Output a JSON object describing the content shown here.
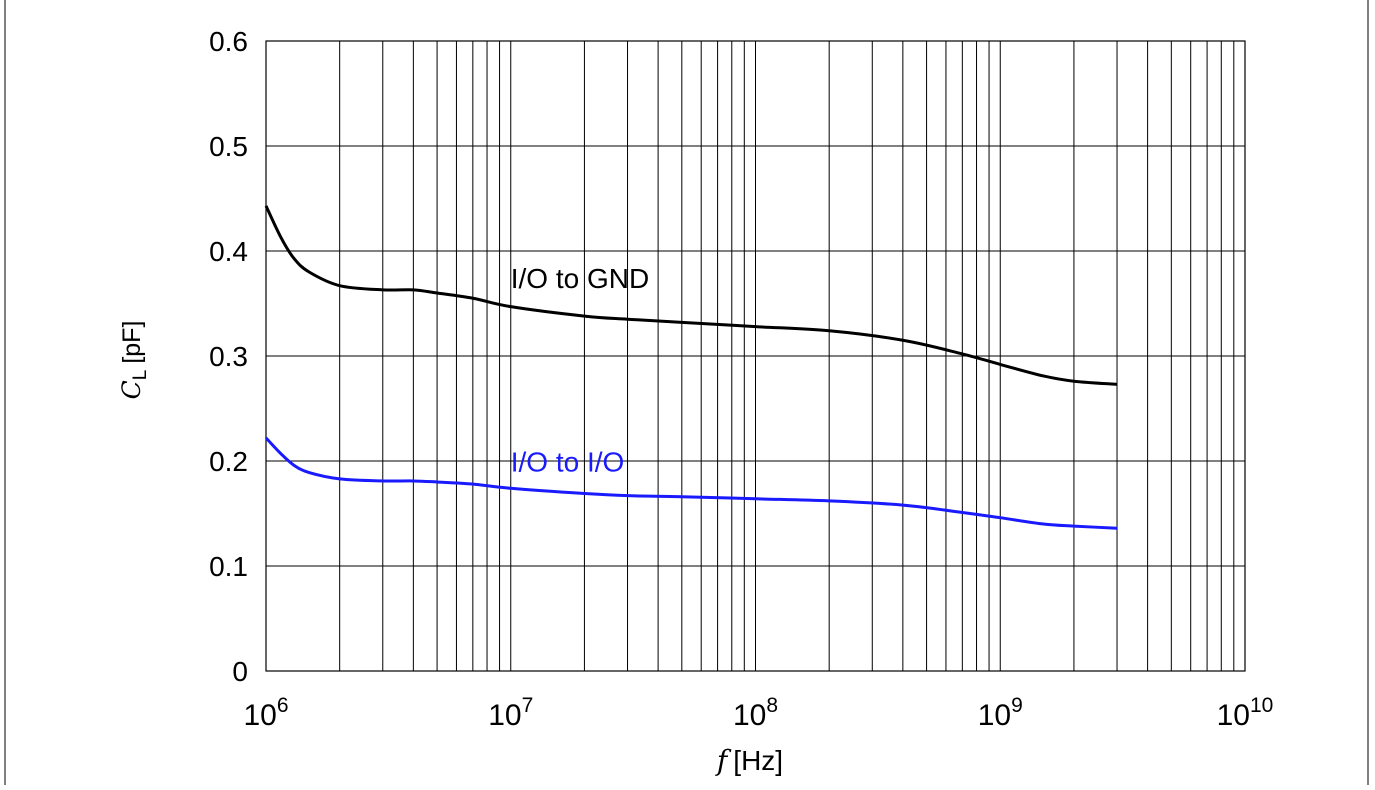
{
  "chart_data": {
    "type": "line",
    "x_scale": "log",
    "xlim": [
      1000000,
      10000000000
    ],
    "ylim": [
      0,
      0.6
    ],
    "grid": true,
    "xlabel_var": "f",
    "xlabel_unit": "[Hz]",
    "ylabel_var": "C",
    "ylabel_sub": "L",
    "ylabel_unit": "[pF]",
    "x_ticks": [
      {
        "base": "10",
        "exp": "6",
        "value": 1000000
      },
      {
        "base": "10",
        "exp": "7",
        "value": 10000000
      },
      {
        "base": "10",
        "exp": "8",
        "value": 100000000
      },
      {
        "base": "10",
        "exp": "9",
        "value": 1000000000
      },
      {
        "base": "10",
        "exp": "10",
        "value": 10000000000
      }
    ],
    "y_ticks": [
      "0",
      "0.1",
      "0.2",
      "0.3",
      "0.4",
      "0.5",
      "0.6"
    ],
    "series": [
      {
        "name": "I/O to GND",
        "color": "#000000",
        "label_at": {
          "x": 10000000,
          "y": 0.365
        },
        "x": [
          1000000,
          1150000,
          1300000,
          1500000,
          2000000,
          3000000,
          4000000,
          5000000,
          7000000,
          10000000,
          20000000,
          30000000,
          50000000,
          100000000,
          200000000,
          400000000,
          700000000,
          1000000000,
          1500000000,
          2000000000,
          3000000000
        ],
        "y": [
          0.443,
          0.413,
          0.393,
          0.38,
          0.367,
          0.363,
          0.363,
          0.36,
          0.355,
          0.347,
          0.338,
          0.335,
          0.332,
          0.328,
          0.324,
          0.315,
          0.302,
          0.292,
          0.281,
          0.276,
          0.273
        ]
      },
      {
        "name": "I/O to I/O",
        "color": "#1a1aff",
        "label_at": {
          "x": 10000000,
          "y": 0.19
        },
        "x": [
          1000000,
          1150000,
          1300000,
          1500000,
          2000000,
          3000000,
          4000000,
          5000000,
          7000000,
          10000000,
          20000000,
          30000000,
          50000000,
          100000000,
          200000000,
          400000000,
          700000000,
          1000000000,
          1500000000,
          2000000000,
          3000000000
        ],
        "y": [
          0.222,
          0.207,
          0.196,
          0.189,
          0.183,
          0.181,
          0.181,
          0.18,
          0.178,
          0.174,
          0.169,
          0.167,
          0.166,
          0.164,
          0.162,
          0.158,
          0.151,
          0.146,
          0.14,
          0.138,
          0.136
        ]
      }
    ]
  }
}
